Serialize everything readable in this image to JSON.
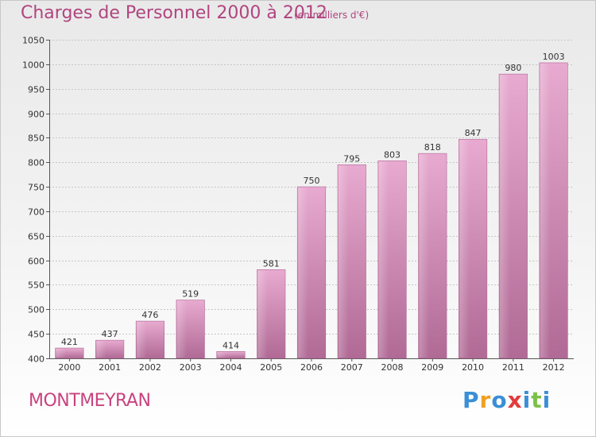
{
  "header": {
    "title": "Charges de Personnel 2000 à 2012",
    "subtitle": "(en milliers d'€)"
  },
  "footer": {
    "commune": "MONTMEYRAN",
    "logo": {
      "letters": [
        "P",
        "r",
        "o",
        "x",
        "i",
        "t",
        "i"
      ],
      "colors": [
        "#3a8fd6",
        "#f0a020",
        "#3a8fd6",
        "#e23a3a",
        "#3a8fd6",
        "#7cc04a",
        "#3a8fd6"
      ]
    }
  },
  "chart_data": {
    "type": "bar",
    "categories": [
      "2000",
      "2001",
      "2002",
      "2003",
      "2004",
      "2005",
      "2006",
      "2007",
      "2008",
      "2009",
      "2010",
      "2011",
      "2012"
    ],
    "values": [
      421,
      437,
      476,
      519,
      414,
      581,
      750,
      795,
      803,
      818,
      847,
      980,
      1003
    ],
    "title": "Charges de Personnel 2000 à 2012",
    "subtitle": "(en milliers d'€)",
    "xlabel": "",
    "ylabel": "",
    "ylim": [
      400,
      1050
    ],
    "yticks": [
      400,
      450,
      500,
      550,
      600,
      650,
      700,
      750,
      800,
      850,
      900,
      950,
      1000,
      1050
    ],
    "grid": true,
    "bar_color": "#d98cb7"
  }
}
